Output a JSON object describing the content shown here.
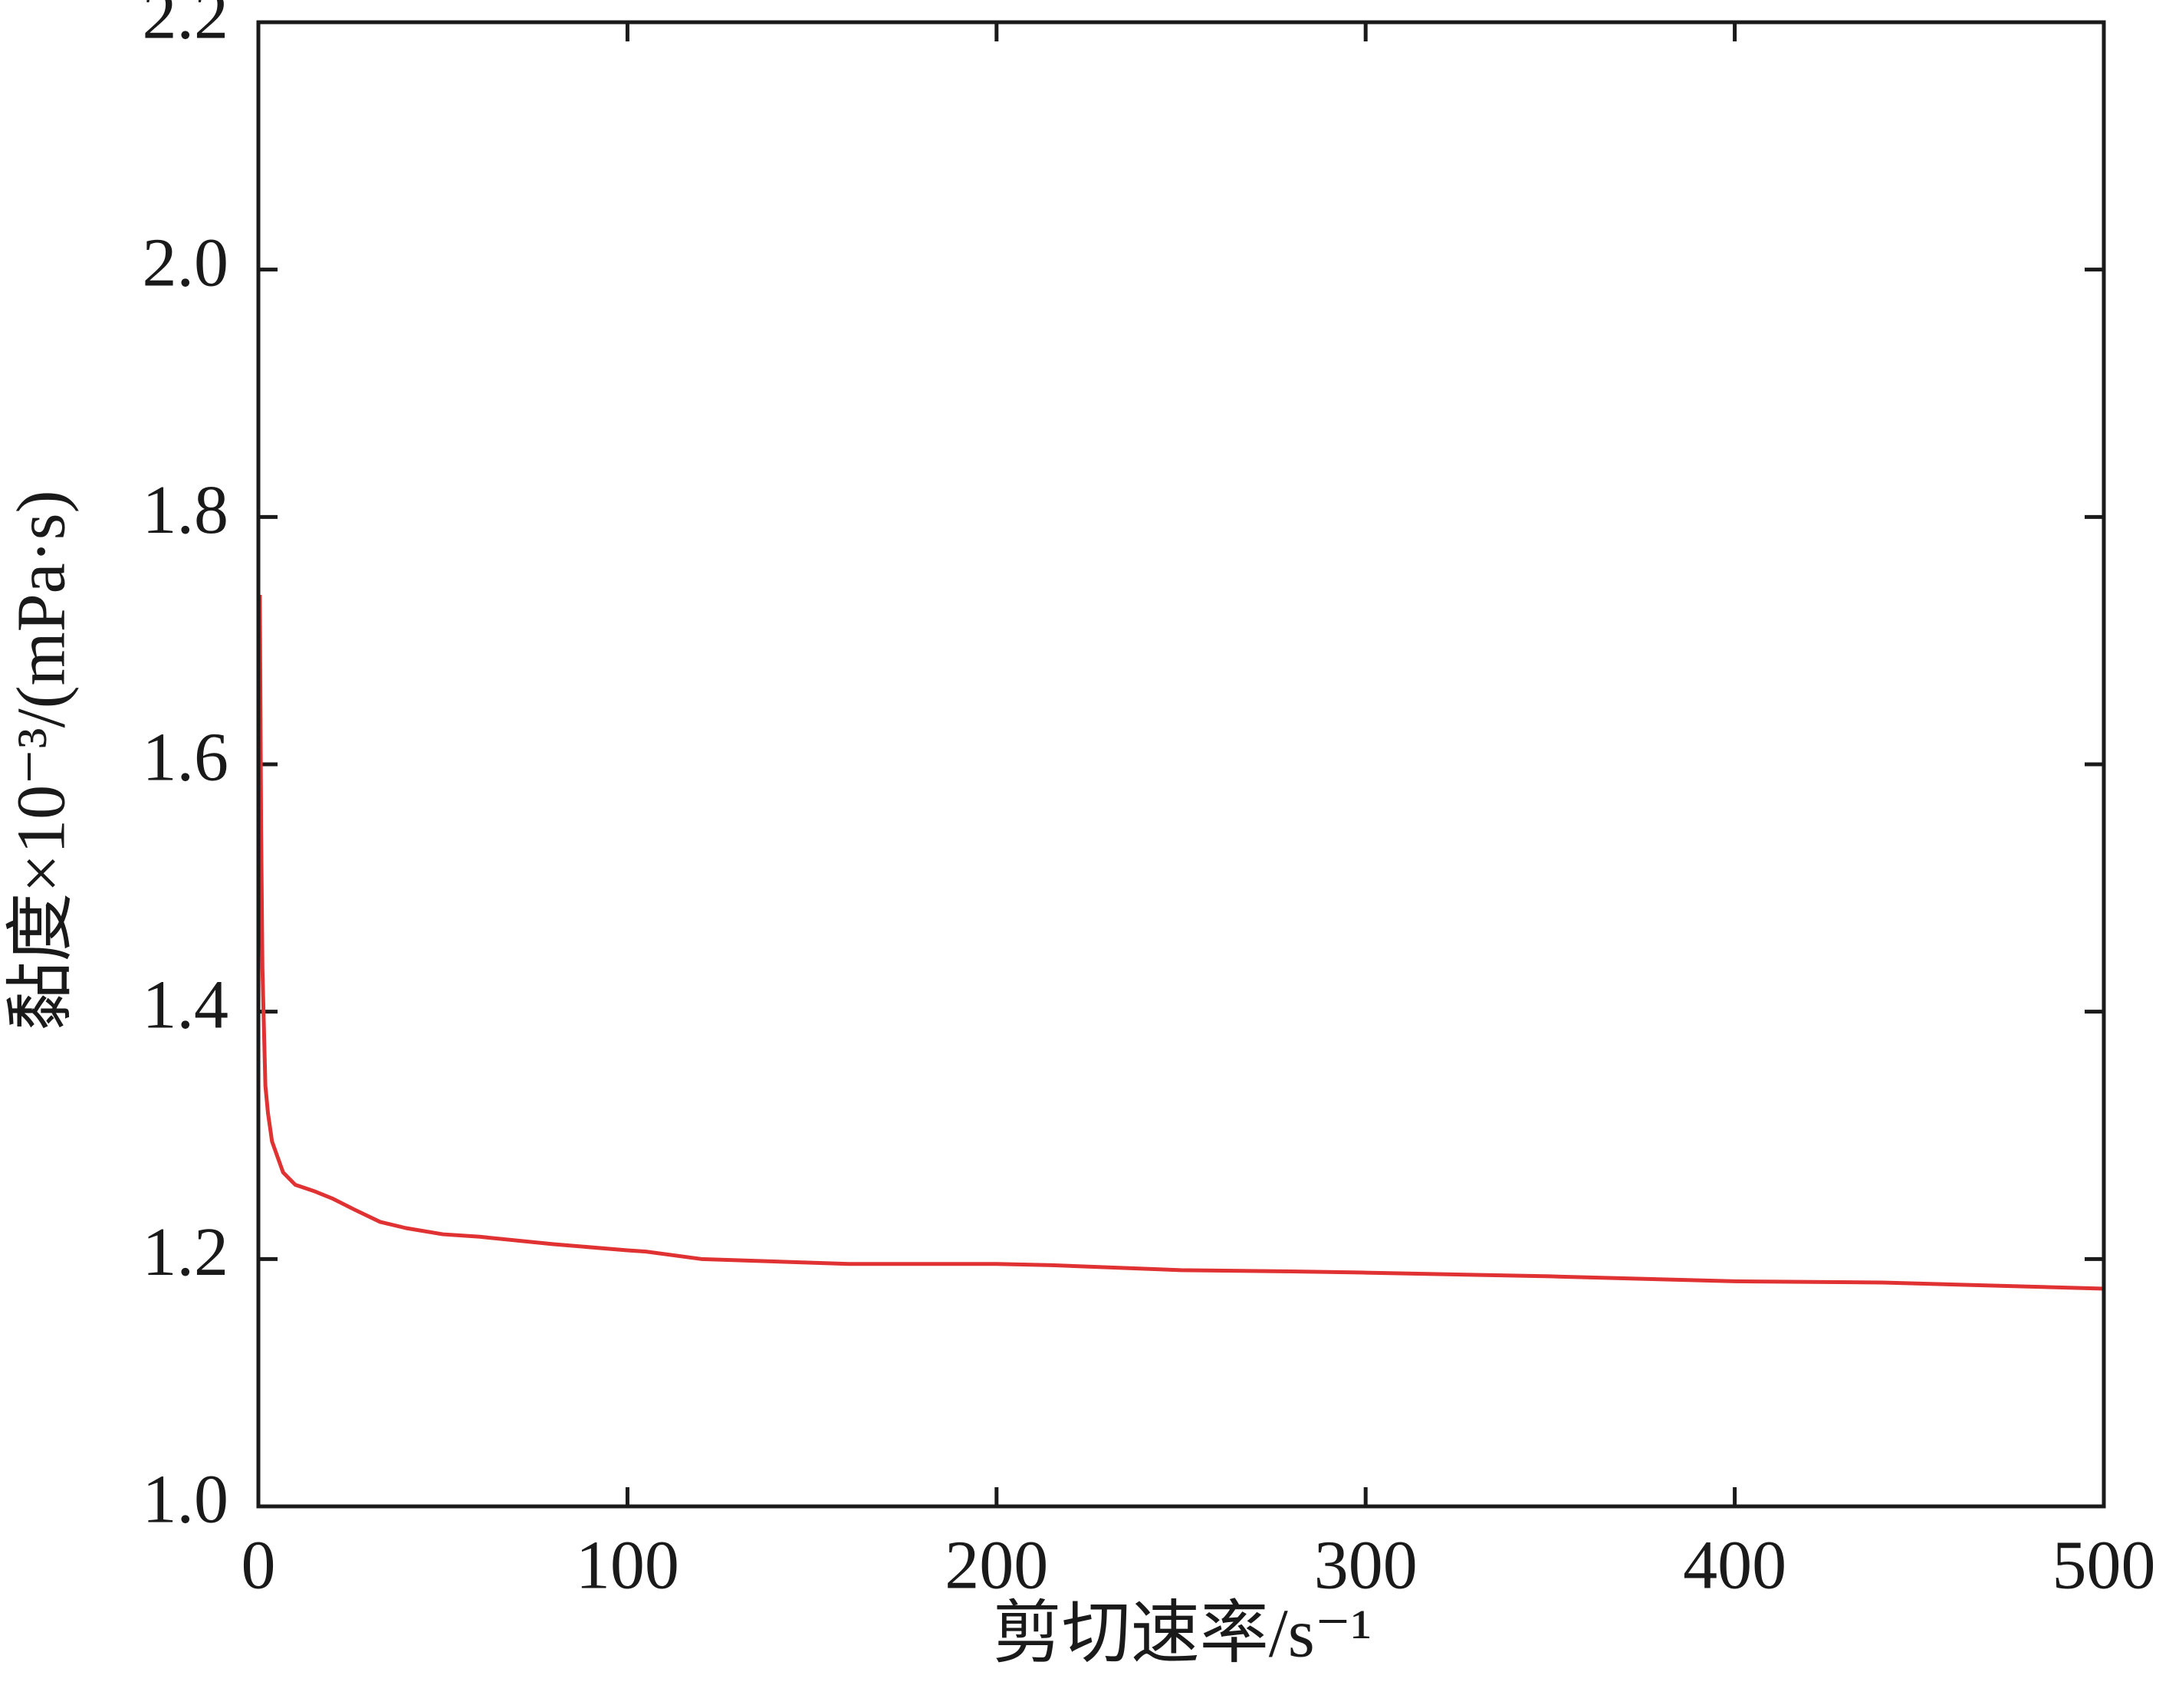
{
  "chart_data": {
    "type": "line",
    "xlabel": "剪切速率/s⁻¹",
    "ylabel": "黏度×10⁻³/(mPa·s)",
    "x": [
      0.4,
      0.75,
      1.1,
      1.9,
      2.6,
      3.7,
      6.7,
      10,
      15,
      20,
      26,
      33,
      40,
      50,
      60,
      80,
      100,
      105,
      120,
      160,
      200,
      215,
      250,
      280,
      300,
      350,
      400,
      440,
      500
    ],
    "values": [
      1.737,
      1.547,
      1.435,
      1.34,
      1.318,
      1.295,
      1.27,
      1.26,
      1.255,
      1.249,
      1.24,
      1.23,
      1.225,
      1.22,
      1.218,
      1.212,
      1.207,
      1.206,
      1.2,
      1.196,
      1.196,
      1.195,
      1.191,
      1.19,
      1.189,
      1.186,
      1.182,
      1.181,
      1.176
    ],
    "color": "#e03232",
    "xlim": [
      0,
      500
    ],
    "xticks": [
      0,
      100,
      200,
      300,
      400,
      500
    ],
    "ylim": [
      1.0,
      2.2
    ],
    "yticks": [
      {
        "value": 1,
        "label": "1.0"
      },
      1.2,
      1.4,
      1.6,
      1.8,
      {
        "value": 2,
        "label": "2.0"
      },
      2.2
    ],
    "grid": false
  }
}
